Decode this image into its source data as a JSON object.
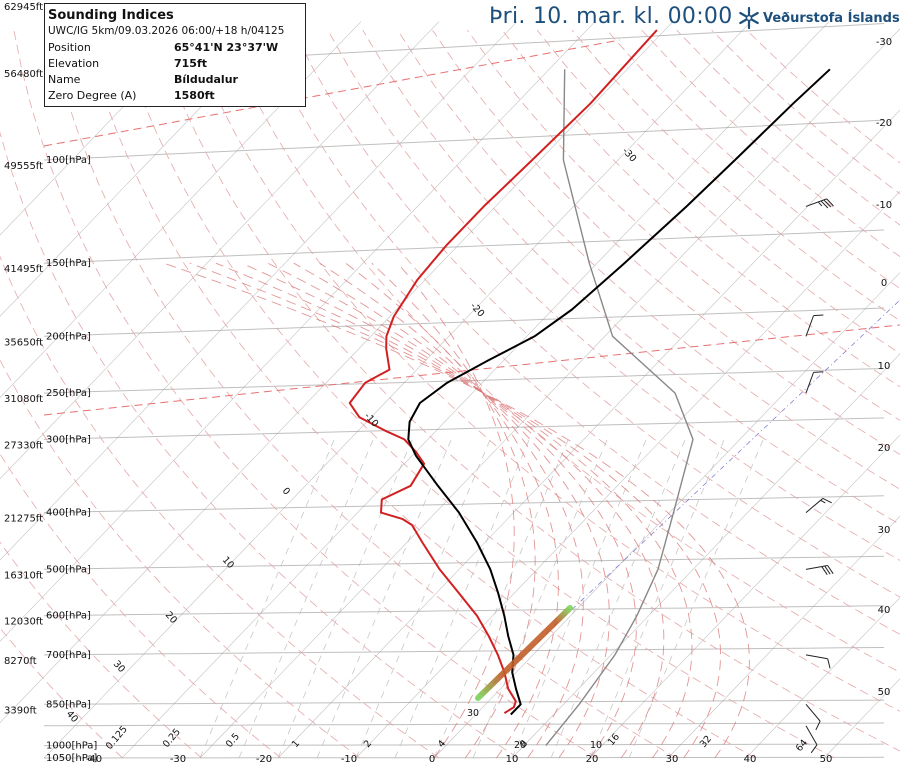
{
  "header": {
    "date_title": "Þri. 10. mar. kl. 00:00",
    "brand": "Veðurstofa Íslands"
  },
  "info": {
    "title": "Sounding Indices",
    "run": "UWC/IG 5km/09.03.2026 06:00/+18 h/04125",
    "rows": [
      {
        "label": "Position",
        "value": "65°41'N 23°37'W"
      },
      {
        "label": "Elevation",
        "value": "715ft"
      },
      {
        "label": "Name",
        "value": "Bíldudalur"
      },
      {
        "label": "Zero Degree (A)",
        "value": "1580ft"
      }
    ]
  },
  "colors": {
    "temperature": "#d22020",
    "dewpoint": "#000000",
    "parcel": "#888888",
    "isobar": "#bfbfbf",
    "isotherm": "#999999",
    "dry_adiabat": "#e4a8a8",
    "moist_adiabat": "#d97373",
    "mixing_ratio": "#bbbbbb",
    "tropopause": "#e87070",
    "title": "#1d4f7c",
    "wind_barb": "#222222"
  },
  "chart_data": {
    "type": "skew-t log-p sounding",
    "pressure_levels": [
      {
        "p": "100[hPa]",
        "alt": "49555ft"
      },
      {
        "p": "150[hPa]",
        "alt": "41495ft"
      },
      {
        "p": "200[hPa]",
        "alt": "35650ft"
      },
      {
        "p": "250[hPa]",
        "alt": "31080ft"
      },
      {
        "p": "300[hPa]",
        "alt": "27330ft"
      },
      {
        "p": "400[hPa]",
        "alt": "21275ft"
      },
      {
        "p": "500[hPa]",
        "alt": "16310ft"
      },
      {
        "p": "600[hPa]",
        "alt": "12030ft"
      },
      {
        "p": "700[hPa]",
        "alt": "8270ft"
      },
      {
        "p": "850[hPa]",
        "alt": "3390ft"
      },
      {
        "p": "1000[hPa]",
        "alt": ""
      },
      {
        "p": "1050[hPa]",
        "alt": ""
      }
    ],
    "altitude_labels": [
      "62945ft",
      "56480ft"
    ],
    "right_temperature_ticks": [
      "-30",
      "-20",
      "-10",
      "0",
      "10",
      "20",
      "30",
      "40",
      "50"
    ],
    "bottom_temperature_ticks": [
      "-40",
      "-30",
      "-20",
      "-10",
      "0",
      "10",
      "20",
      "30",
      "40",
      "50"
    ],
    "mixing_ratio_labels": [
      "0.125",
      "0.25",
      "0.5",
      "1",
      "2",
      "4",
      "8",
      "16",
      "32",
      "64"
    ],
    "adiabat_labels": [
      "40",
      "30",
      "20",
      "10",
      "0",
      "-10",
      "-20",
      "-30"
    ],
    "lower_right_isotherm_labels": [
      "30",
      "20",
      "10"
    ],
    "temperature_profile": [
      {
        "p": 880,
        "t": 3.5
      },
      {
        "p": 860,
        "t": 4.0
      },
      {
        "p": 840,
        "t": 3.5
      },
      {
        "p": 800,
        "t": 1.0
      },
      {
        "p": 750,
        "t": -1.5
      },
      {
        "p": 700,
        "t": -4.5
      },
      {
        "p": 650,
        "t": -8.0
      },
      {
        "p": 600,
        "t": -12.0
      },
      {
        "p": 550,
        "t": -17.0
      },
      {
        "p": 500,
        "t": -22.5
      },
      {
        "p": 450,
        "t": -28.0
      },
      {
        "p": 420,
        "t": -31.5
      },
      {
        "p": 410,
        "t": -33.5
      },
      {
        "p": 400,
        "t": -37.0
      },
      {
        "p": 380,
        "t": -38.5
      },
      {
        "p": 360,
        "t": -36.5
      },
      {
        "p": 330,
        "t": -37.5
      },
      {
        "p": 315,
        "t": -40.0
      },
      {
        "p": 300,
        "t": -43.0
      },
      {
        "p": 290,
        "t": -46.5
      },
      {
        "p": 275,
        "t": -51.5
      },
      {
        "p": 260,
        "t": -54.5
      },
      {
        "p": 240,
        "t": -55.0
      },
      {
        "p": 228,
        "t": -53.5
      },
      {
        "p": 210,
        "t": -56.5
      },
      {
        "p": 200,
        "t": -58.0
      },
      {
        "p": 185,
        "t": -59.5
      },
      {
        "p": 160,
        "t": -61.0
      },
      {
        "p": 140,
        "t": -61.5
      },
      {
        "p": 120,
        "t": -61.5
      },
      {
        "p": 100,
        "t": -61.0
      },
      {
        "p": 80,
        "t": -60.5
      },
      {
        "p": 60,
        "t": -61.0
      }
    ],
    "dewpoint_profile": [
      {
        "p": 885,
        "t": 4.5
      },
      {
        "p": 870,
        "t": 4.5
      },
      {
        "p": 850,
        "t": 4.5
      },
      {
        "p": 800,
        "t": 2.0
      },
      {
        "p": 750,
        "t": -0.5
      },
      {
        "p": 700,
        "t": -2.5
      },
      {
        "p": 650,
        "t": -5.5
      },
      {
        "p": 600,
        "t": -8.5
      },
      {
        "p": 550,
        "t": -12.0
      },
      {
        "p": 500,
        "t": -16.0
      },
      {
        "p": 450,
        "t": -21.0
      },
      {
        "p": 400,
        "t": -27.0
      },
      {
        "p": 360,
        "t": -33.0
      },
      {
        "p": 320,
        "t": -39.5
      },
      {
        "p": 300,
        "t": -42.5
      },
      {
        "p": 280,
        "t": -44.5
      },
      {
        "p": 260,
        "t": -45.5
      },
      {
        "p": 240,
        "t": -44.5
      },
      {
        "p": 220,
        "t": -42.0
      },
      {
        "p": 200,
        "t": -39.0
      },
      {
        "p": 180,
        "t": -37.5
      },
      {
        "p": 150,
        "t": -36.5
      },
      {
        "p": 120,
        "t": -35.5
      },
      {
        "p": 100,
        "t": -35.0
      },
      {
        "p": 80,
        "t": -34.5
      },
      {
        "p": 70,
        "t": -34.0
      }
    ],
    "parcel_profile": [
      {
        "p": 1000,
        "t": 12.8
      },
      {
        "p": 850,
        "t": 12.0
      },
      {
        "p": 700,
        "t": 10.5
      },
      {
        "p": 600,
        "t": 8.5
      },
      {
        "p": 500,
        "t": 5.5
      },
      {
        "p": 400,
        "t": 0.5
      },
      {
        "p": 300,
        "t": -6.0
      },
      {
        "p": 250,
        "t": -14.0
      },
      {
        "p": 200,
        "t": -29.0
      },
      {
        "p": 150,
        "t": -41.0
      },
      {
        "p": 100,
        "t": -57.0
      },
      {
        "p": 70,
        "t": -68.0
      }
    ],
    "tropopause_pressures": [
      255,
      64
    ],
    "wind_barbs": [
      {
        "p": 925,
        "dir": 330,
        "kt": 10
      },
      {
        "p": 850,
        "dir": 320,
        "kt": 10
      },
      {
        "p": 700,
        "dir": 280,
        "kt": 10
      },
      {
        "p": 500,
        "dir": 260,
        "kt": 30
      },
      {
        "p": 400,
        "dir": 230,
        "kt": 15
      },
      {
        "p": 250,
        "dir": 200,
        "kt": 10
      },
      {
        "p": 200,
        "dir": 200,
        "kt": 10
      },
      {
        "p": 120,
        "dir": 250,
        "kt": 35
      }
    ],
    "grid": true
  }
}
